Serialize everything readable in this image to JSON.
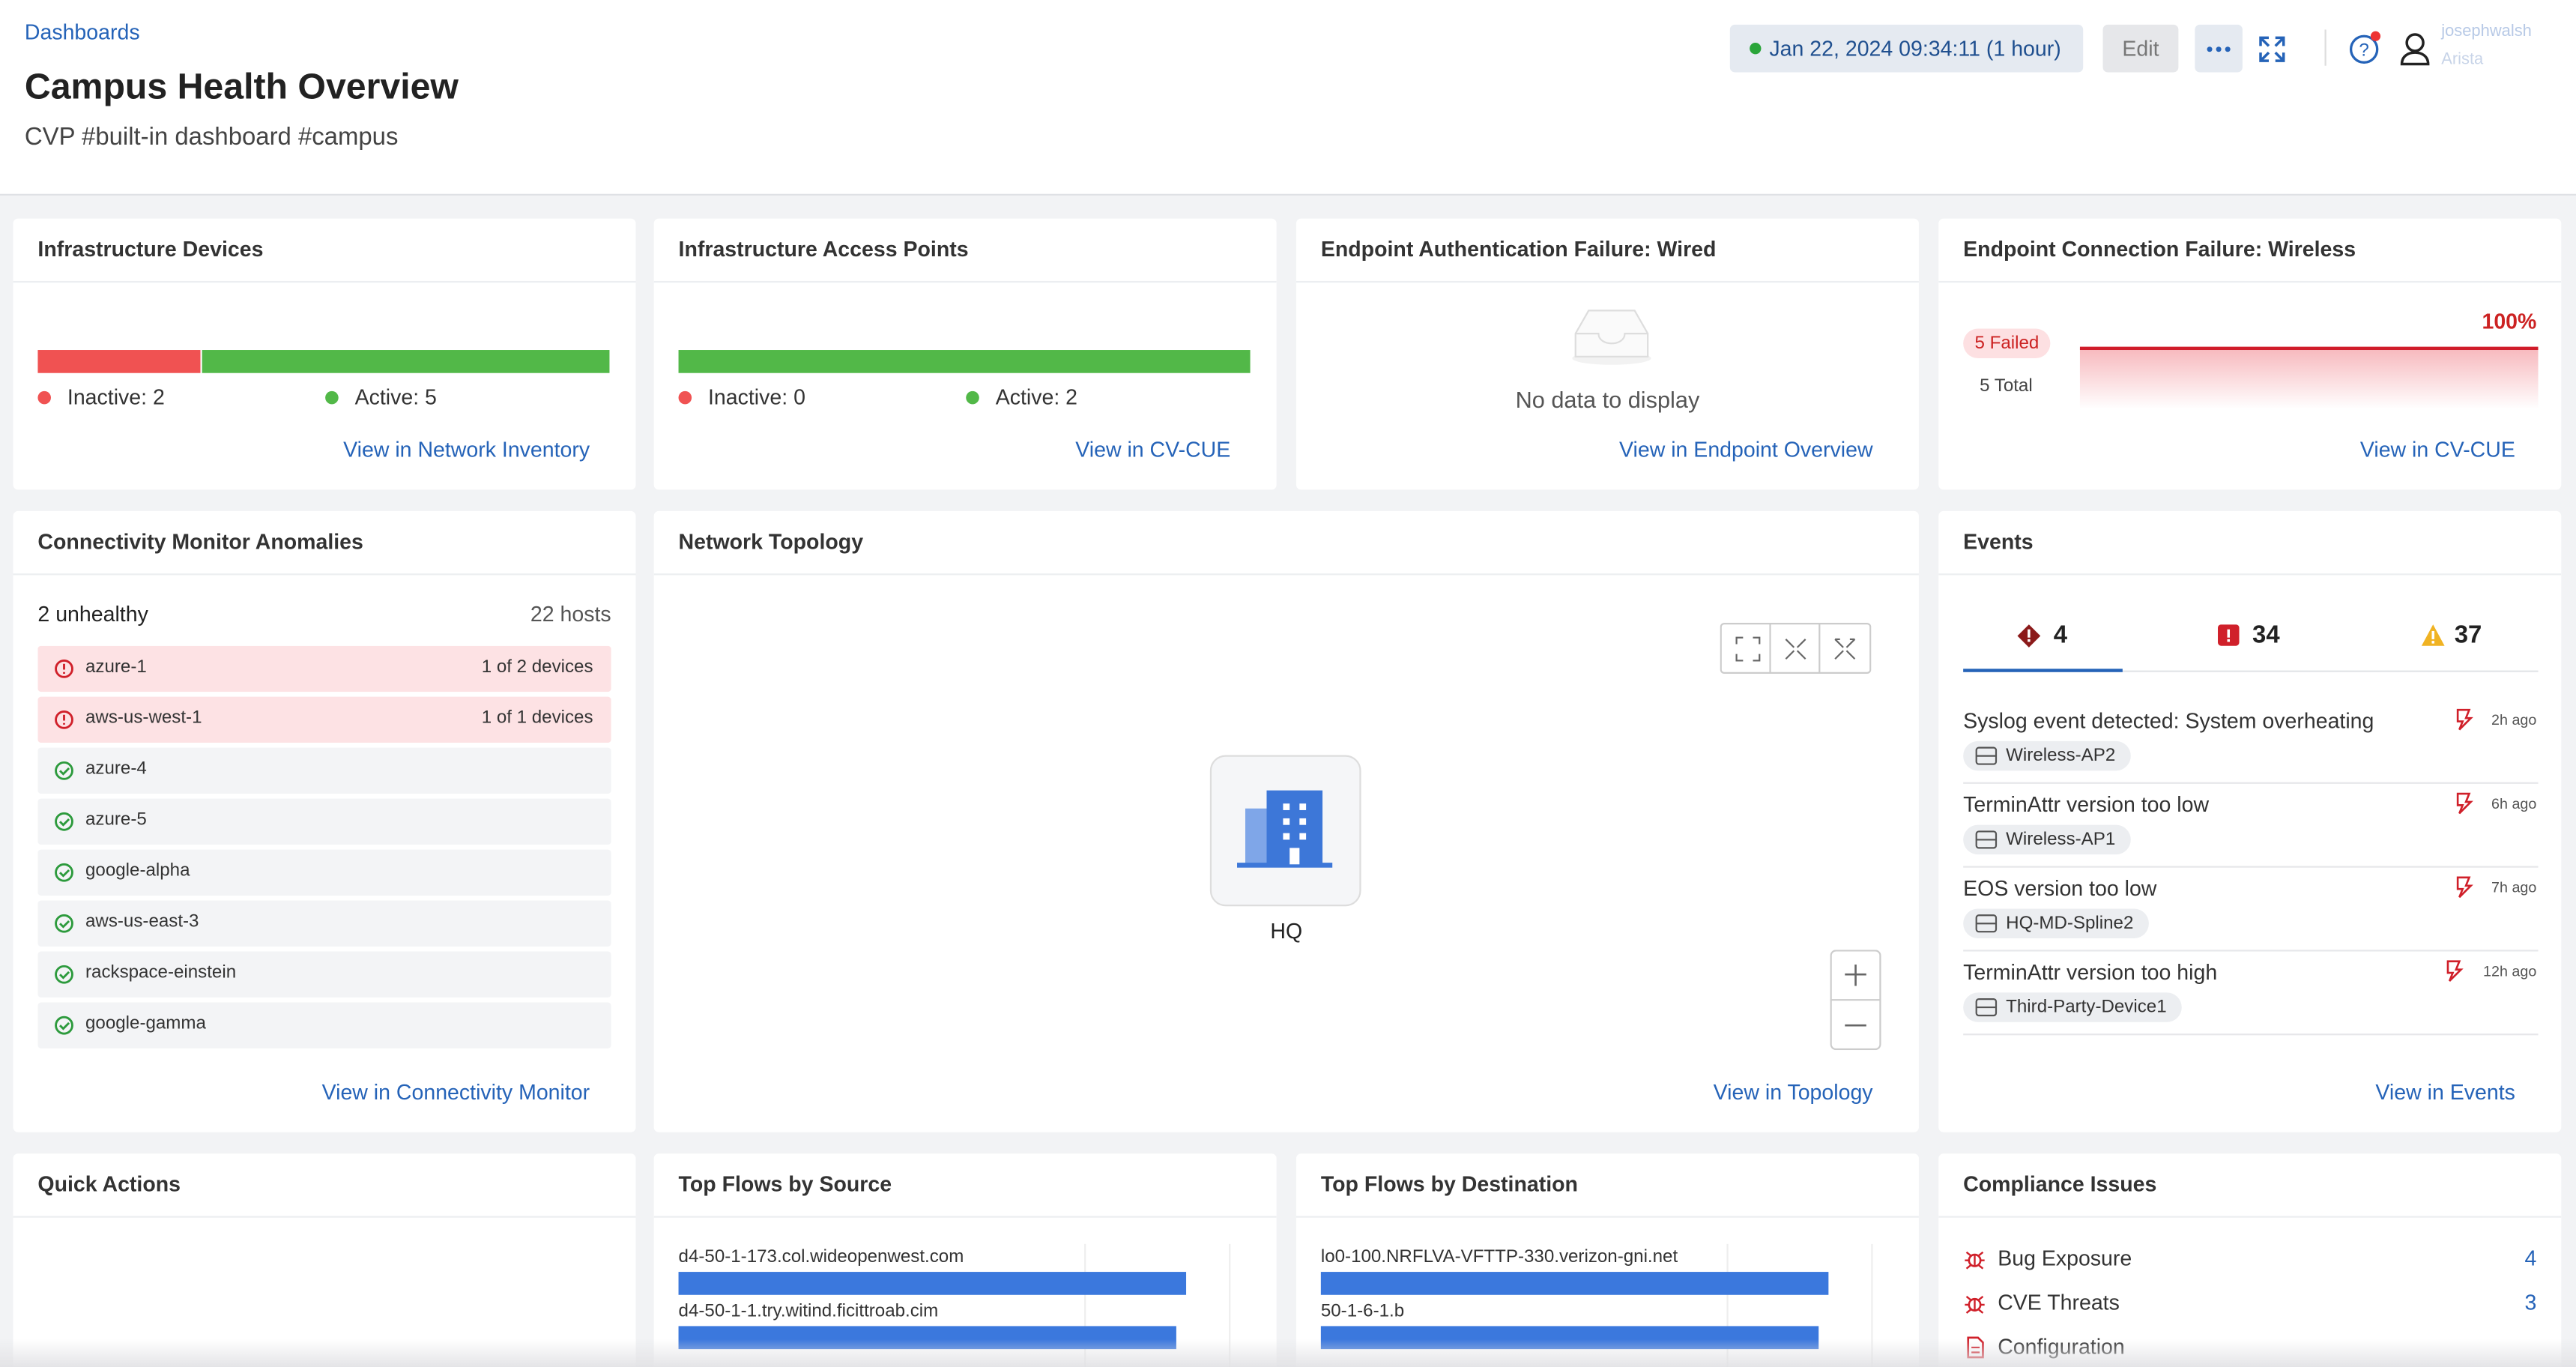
{
  "header": {
    "breadcrumb": "Dashboards",
    "title": "Campus Health Overview",
    "subtitle": "CVP #built-in dashboard #campus",
    "time": "Jan 22, 2024 09:34:11 (1 hour)",
    "edit": "Edit",
    "user": "josephwalsh",
    "org": "Arista"
  },
  "cards": {
    "infra_devices": {
      "title": "Infrastructure Devices",
      "segments": [
        {
          "label": "Inactive: 2",
          "value": 2,
          "color": "#f05252"
        },
        {
          "label": "Active: 5",
          "value": 5,
          "color": "#52b848"
        }
      ],
      "link": "View in Network Inventory"
    },
    "access_points": {
      "title": "Infrastructure Access Points",
      "segments": [
        {
          "label": "Inactive: 0",
          "value": 0,
          "color": "#f05252"
        },
        {
          "label": "Active: 2",
          "value": 2,
          "color": "#52b848"
        }
      ],
      "link": "View in CV-CUE"
    },
    "auth_failure": {
      "title": "Endpoint Authentication Failure: Wired",
      "message": "No data to display",
      "link": "View in Endpoint Overview"
    },
    "conn_failure": {
      "title": "Endpoint Connection Failure: Wireless",
      "failed": "5 Failed",
      "total": "5 Total",
      "percent": "100%",
      "link": "View in CV-CUE"
    },
    "connectivity": {
      "title": "Connectivity Monitor Anomalies",
      "summary": "2 unhealthy",
      "hosts": "22 hosts",
      "rows": [
        {
          "name": "azure-1",
          "status": "1 of 2 devices",
          "healthy": false
        },
        {
          "name": "aws-us-west-1",
          "status": "1 of 1 devices",
          "healthy": false
        },
        {
          "name": "azure-4",
          "healthy": true
        },
        {
          "name": "azure-5",
          "healthy": true
        },
        {
          "name": "google-alpha",
          "healthy": true
        },
        {
          "name": "aws-us-east-3",
          "healthy": true
        },
        {
          "name": "rackspace-einstein",
          "healthy": true
        },
        {
          "name": "google-gamma",
          "healthy": true
        }
      ],
      "link": "View in Connectivity Monitor"
    },
    "topology": {
      "title": "Network Topology",
      "node": "HQ",
      "link": "View in Topology"
    },
    "events": {
      "title": "Events",
      "counts": [
        4,
        34,
        37
      ],
      "items": [
        {
          "text": "Syslog event detected: System overheating",
          "device": "Wireless-AP2",
          "age": "2h ago"
        },
        {
          "text": "TerminAttr version too low",
          "device": "Wireless-AP1",
          "age": "6h ago"
        },
        {
          "text": "EOS version too low",
          "device": "HQ-MD-Spline2",
          "age": "7h ago"
        },
        {
          "text": "TerminAttr version too high",
          "device": "Third-Party-Device1",
          "age": "12h ago"
        }
      ],
      "link": "View in Events"
    },
    "quick_actions": {
      "title": "Quick Actions"
    },
    "flows_source": {
      "title": "Top Flows by Source",
      "flows": [
        {
          "name": "d4-50-1-173.col.wideopenwest.com",
          "value": 100
        },
        {
          "name": "d4-50-1-1.try.witind.ficittroab.cim",
          "value": 98
        }
      ]
    },
    "flows_dest": {
      "title": "Top Flows by Destination",
      "flows": [
        {
          "name": "lo0-100.NRFLVA-VFTTP-330.verizon-gni.net",
          "value": 100
        },
        {
          "name": "50-1-6-1.b",
          "value": 98
        }
      ]
    },
    "compliance": {
      "title": "Compliance Issues",
      "items": [
        {
          "name": "Bug Exposure",
          "count": 4
        },
        {
          "name": "CVE Threats",
          "count": 3
        },
        {
          "name": "Configuration"
        }
      ]
    }
  }
}
